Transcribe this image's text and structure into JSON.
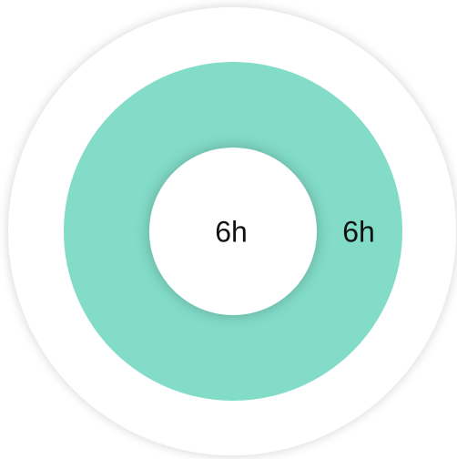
{
  "widget": {
    "center_label": "6h",
    "ring_label": "6h"
  }
}
